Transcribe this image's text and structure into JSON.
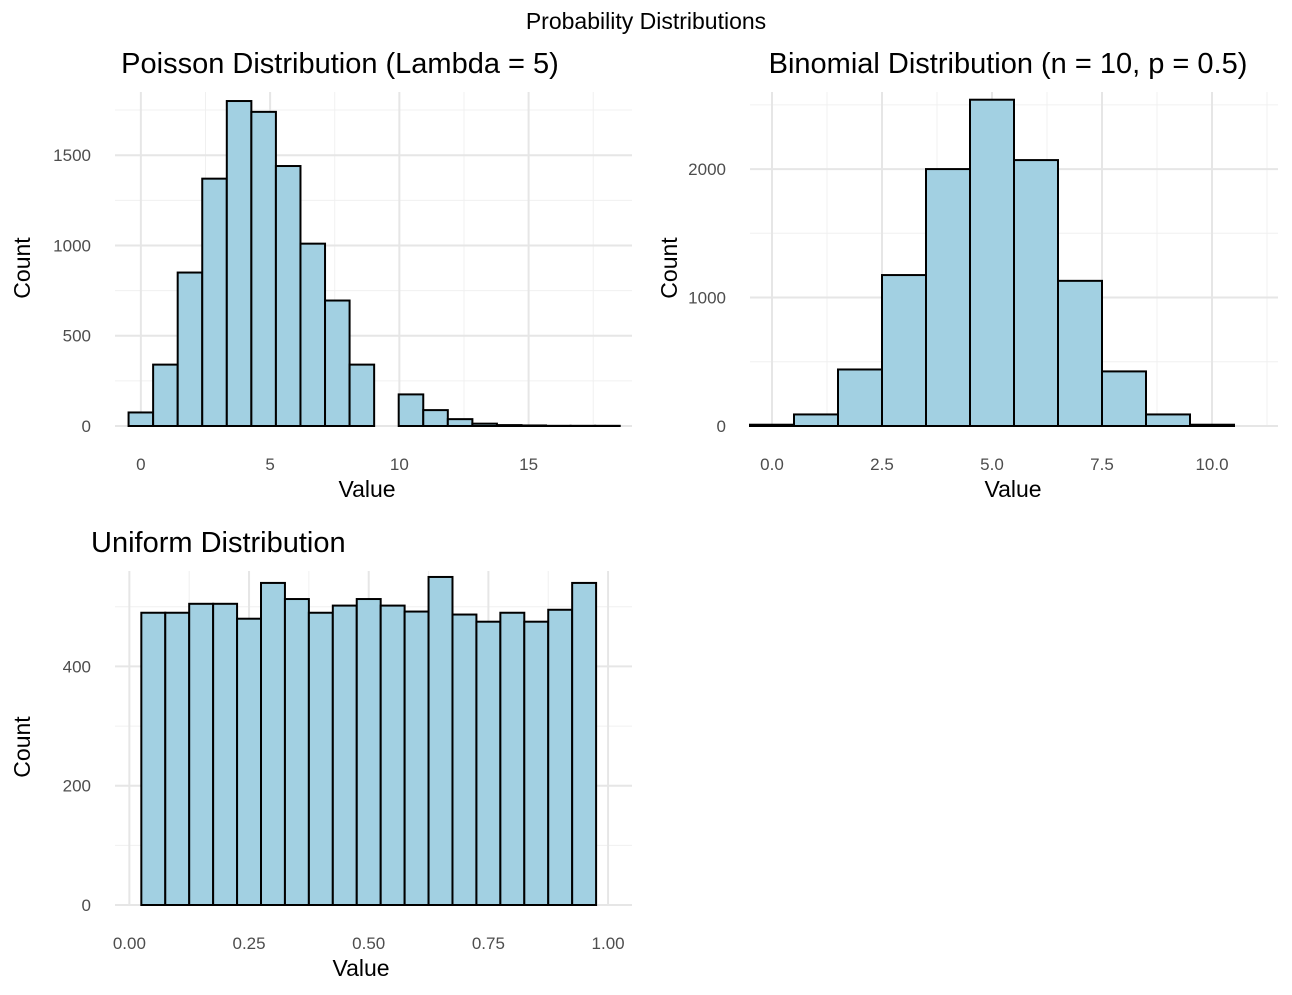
{
  "page": {
    "title": "Probability Distributions",
    "bar_fill": "#a2d0e2",
    "bar_stroke": "#000000",
    "background": "#ffffff"
  },
  "chart_data": [
    {
      "type": "bar",
      "title": "Poisson Distribution (Lambda = 5)",
      "xlabel": "Value",
      "ylabel": "Count",
      "xlim": [
        -1,
        19
      ],
      "ylim": [
        0,
        1850
      ],
      "xticks": [
        0,
        5,
        10,
        15
      ],
      "xtick_labels": [
        "0",
        "5",
        "10",
        "15"
      ],
      "yticks": [
        0,
        500,
        1000,
        1500
      ],
      "ytick_labels": [
        "0",
        "500",
        "1000",
        "1500"
      ],
      "bin_width": 0.95,
      "x": [
        0,
        0.95,
        1.9,
        2.85,
        3.8,
        4.75,
        5.7,
        6.65,
        7.6,
        8.55,
        9.5,
        10.45,
        11.4,
        12.35,
        13.3,
        14.25,
        15.2,
        16.15,
        17.1,
        18.05
      ],
      "values": [
        75,
        340,
        850,
        1370,
        1800,
        1740,
        1440,
        1010,
        695,
        340,
        0,
        175,
        88,
        38,
        13,
        5,
        3,
        1,
        1,
        1
      ],
      "grid": true,
      "legend": "none"
    },
    {
      "type": "bar",
      "title": "Binomial Distribution (n = 10, p = 0.5)",
      "xlabel": "Value",
      "ylabel": "Count",
      "xlim": [
        -0.5,
        11.5
      ],
      "ylim": [
        0,
        2600
      ],
      "xticks": [
        0,
        2.5,
        5,
        7.5,
        10
      ],
      "xtick_labels": [
        "0.0",
        "2.5",
        "5.0",
        "7.5",
        "10.0"
      ],
      "yticks": [
        0,
        1000,
        2000
      ],
      "ytick_labels": [
        "0",
        "1000",
        "2000"
      ],
      "bin_width": 1,
      "x": [
        0,
        1,
        2,
        3,
        4,
        5,
        6,
        7,
        8,
        9,
        10
      ],
      "values": [
        10,
        90,
        440,
        1175,
        2000,
        2540,
        2070,
        1130,
        425,
        90,
        10
      ],
      "grid": true,
      "legend": "none"
    },
    {
      "type": "bar",
      "title": "Uniform Distribution",
      "xlabel": "Value",
      "ylabel": "Count",
      "xlim": [
        -0.03,
        1.05
      ],
      "ylim": [
        0,
        560
      ],
      "xticks": [
        0,
        0.25,
        0.5,
        0.75,
        1
      ],
      "xtick_labels": [
        "0.00",
        "0.25",
        "0.50",
        "0.75",
        "1.00"
      ],
      "yticks": [
        0,
        200,
        400
      ],
      "ytick_labels": [
        "0",
        "200",
        "400"
      ],
      "bin_width": 0.05,
      "x": [
        0.05,
        0.1,
        0.15,
        0.2,
        0.25,
        0.3,
        0.35,
        0.4,
        0.45,
        0.5,
        0.55,
        0.6,
        0.65,
        0.7,
        0.75,
        0.8,
        0.85,
        0.9,
        0.95
      ],
      "values": [
        490,
        490,
        505,
        505,
        480,
        540,
        513,
        490,
        502,
        513,
        502,
        492,
        550,
        487,
        475,
        490,
        475,
        495,
        540
      ],
      "grid": true,
      "legend": "none"
    }
  ]
}
